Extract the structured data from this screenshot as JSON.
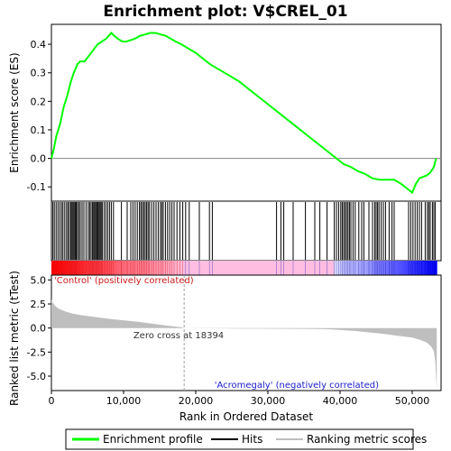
{
  "chart_data": {
    "type": "line",
    "title": "Enrichment plot: V$CREL_01",
    "xlabel": "Rank in Ordered Dataset",
    "x_ticks": [
      0,
      10000,
      20000,
      30000,
      40000,
      50000
    ],
    "xlim": [
      0,
      54000
    ],
    "es_panel": {
      "ylabel": "Enrichment score (ES)",
      "ylim": [
        -0.15,
        0.47
      ],
      "y_ticks": [
        -0.1,
        0.0,
        0.1,
        0.2,
        0.3,
        0.4
      ],
      "series": {
        "x": [
          0,
          300,
          700,
          1200,
          1700,
          2200,
          2700,
          3100,
          3600,
          4000,
          4600,
          5200,
          5800,
          6400,
          7000,
          7600,
          8300,
          8700,
          9200,
          9800,
          10400,
          11000,
          11600,
          12300,
          13000,
          13700,
          14400,
          15100,
          15800,
          16500,
          17200,
          18000,
          20000,
          22000,
          24000,
          26000,
          28000,
          30000,
          32000,
          34000,
          36000,
          38000,
          39500,
          40500,
          41500,
          42500,
          43500,
          44500,
          45500,
          46500,
          47500,
          48500,
          49500,
          50000,
          50500,
          51000,
          51500,
          52000,
          52500,
          53000,
          53300
        ],
        "y": [
          0.0,
          0.03,
          0.08,
          0.12,
          0.18,
          0.22,
          0.27,
          0.3,
          0.33,
          0.34,
          0.34,
          0.36,
          0.38,
          0.4,
          0.41,
          0.42,
          0.44,
          0.43,
          0.42,
          0.41,
          0.41,
          0.415,
          0.42,
          0.43,
          0.435,
          0.44,
          0.44,
          0.435,
          0.43,
          0.42,
          0.41,
          0.4,
          0.37,
          0.33,
          0.3,
          0.27,
          0.23,
          0.19,
          0.15,
          0.11,
          0.07,
          0.03,
          0.0,
          -0.02,
          -0.03,
          -0.045,
          -0.055,
          -0.07,
          -0.075,
          -0.075,
          -0.075,
          -0.09,
          -0.11,
          -0.12,
          -0.09,
          -0.07,
          -0.065,
          -0.06,
          -0.05,
          -0.03,
          0.0
        ]
      }
    },
    "hits_panel": {
      "hit_ranks": [
        200,
        400,
        650,
        900,
        1150,
        1400,
        1600,
        1850,
        2100,
        2300,
        2500,
        2700,
        2850,
        3000,
        3150,
        3300,
        3450,
        3600,
        3800,
        4000,
        4250,
        4500,
        4800,
        5100,
        5300,
        5500,
        5700,
        5850,
        6000,
        6150,
        6300,
        6450,
        6600,
        6750,
        6900,
        7050,
        7300,
        7550,
        7800,
        8050,
        8300,
        8600,
        9700,
        10500,
        11000,
        11300,
        11600,
        11900,
        12200,
        12400,
        12600,
        12800,
        13000,
        13200,
        13400,
        13600,
        13900,
        14200,
        14500,
        14800,
        15100,
        15300,
        15500,
        15800,
        16100,
        16400,
        16700,
        17000,
        17400,
        17800,
        18200,
        18600,
        19100,
        20500,
        21900,
        22300,
        31200,
        31800,
        32200,
        33500,
        35200,
        36500,
        37200,
        38200,
        39200,
        39500,
        39800,
        40100,
        40300,
        40500,
        40700,
        40900,
        41100,
        41300,
        41500,
        41800,
        42100,
        42600,
        43000,
        43300,
        44000,
        44500,
        44800,
        45000,
        45200,
        45400,
        45700,
        46000,
        46300,
        46800,
        47200,
        47500,
        49500,
        49800,
        50100,
        50400,
        50700,
        51000,
        51300,
        51800,
        52100,
        52300,
        52500,
        52800,
        53000,
        53200
      ]
    },
    "ranked_metric_panel": {
      "ylabel": "Ranked list metric (tTest)",
      "ylim": [
        -6.5,
        5.5
      ],
      "y_ticks": [
        -5.0,
        -2.5,
        0.0,
        2.5,
        5.0
      ],
      "series": {
        "x": [
          0,
          200,
          500,
          1000,
          2000,
          3000,
          4000,
          6000,
          8000,
          10000,
          12000,
          14000,
          16000,
          18000,
          18394,
          20000,
          25000,
          30000,
          35000,
          38000,
          40000,
          42000,
          44000,
          46000,
          48000,
          50000,
          51000,
          52000,
          52600,
          53000,
          53200,
          53400
        ],
        "y": [
          3.0,
          2.6,
          2.3,
          2.0,
          1.7,
          1.5,
          1.35,
          1.15,
          0.95,
          0.8,
          0.65,
          0.45,
          0.25,
          0.08,
          0.0,
          -0.02,
          -0.05,
          -0.07,
          -0.09,
          -0.12,
          -0.2,
          -0.3,
          -0.45,
          -0.6,
          -0.8,
          -1.0,
          -1.2,
          -1.5,
          -1.9,
          -2.4,
          -3.5,
          -6.4
        ]
      },
      "zero_cross_label": "Zero cross at 18394",
      "zero_cross_rank": 18394,
      "positive_label": "'Control' (positively correlated)",
      "negative_label": "'Acromegaly' (negatively correlated)"
    },
    "legend": {
      "placement": "bottom",
      "entries": [
        "Enrichment profile",
        "Hits",
        "Ranking metric scores"
      ]
    },
    "colors": {
      "profile": "#00ff00",
      "hits": "#000000",
      "metric": "#bebebe",
      "positive": "#ff0000",
      "negative": "#0000ff",
      "zero_cross": "#a0a0a0",
      "negative_label": "#1a1acc",
      "positive_label": "#cc1a1a"
    }
  }
}
